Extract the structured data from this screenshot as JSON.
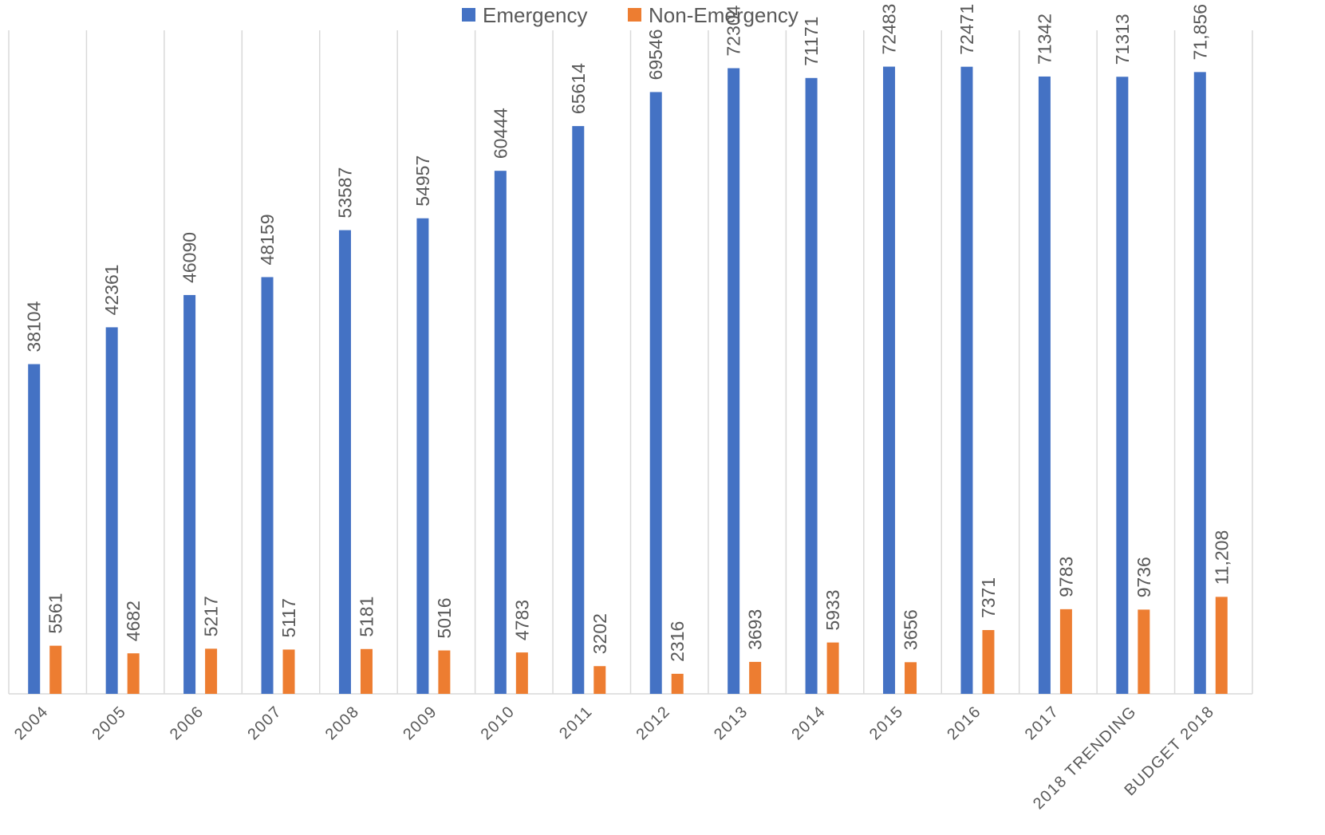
{
  "chart_data": {
    "type": "bar",
    "categories": [
      "2004",
      "2005",
      "2006",
      "2007",
      "2008",
      "2009",
      "2010",
      "2011",
      "2012",
      "2013",
      "2014",
      "2015",
      "2016",
      "2017",
      "2018 TRENDING",
      "BUDGET 2018"
    ],
    "series": [
      {
        "name": "Emergency",
        "color": "#4472C4",
        "values": [
          38104,
          42361,
          46090,
          48159,
          53587,
          54957,
          60444,
          65614,
          69546,
          72304,
          71171,
          72483,
          72471,
          71342,
          71313,
          71856
        ],
        "labels": [
          "38104",
          "42361",
          "46090",
          "48159",
          "53587",
          "54957",
          "60444",
          "65614",
          "69546",
          "72304",
          "71171",
          "72483",
          "72471",
          "71342",
          "71313",
          "71,856"
        ]
      },
      {
        "name": "Non-Emergency",
        "color": "#ED7D31",
        "values": [
          5561,
          4682,
          5217,
          5117,
          5181,
          5016,
          4783,
          3202,
          2316,
          3693,
          5933,
          3656,
          7371,
          9783,
          9736,
          11208
        ],
        "labels": [
          "5561",
          "4682",
          "5217",
          "5117",
          "5181",
          "5016",
          "4783",
          "3202",
          "2316",
          "3693",
          "5933",
          "3656",
          "7371",
          "9783",
          "9736",
          "11,208"
        ]
      }
    ],
    "ylim": [
      0,
      80000
    ],
    "grid": "vertical",
    "legend": "top"
  }
}
